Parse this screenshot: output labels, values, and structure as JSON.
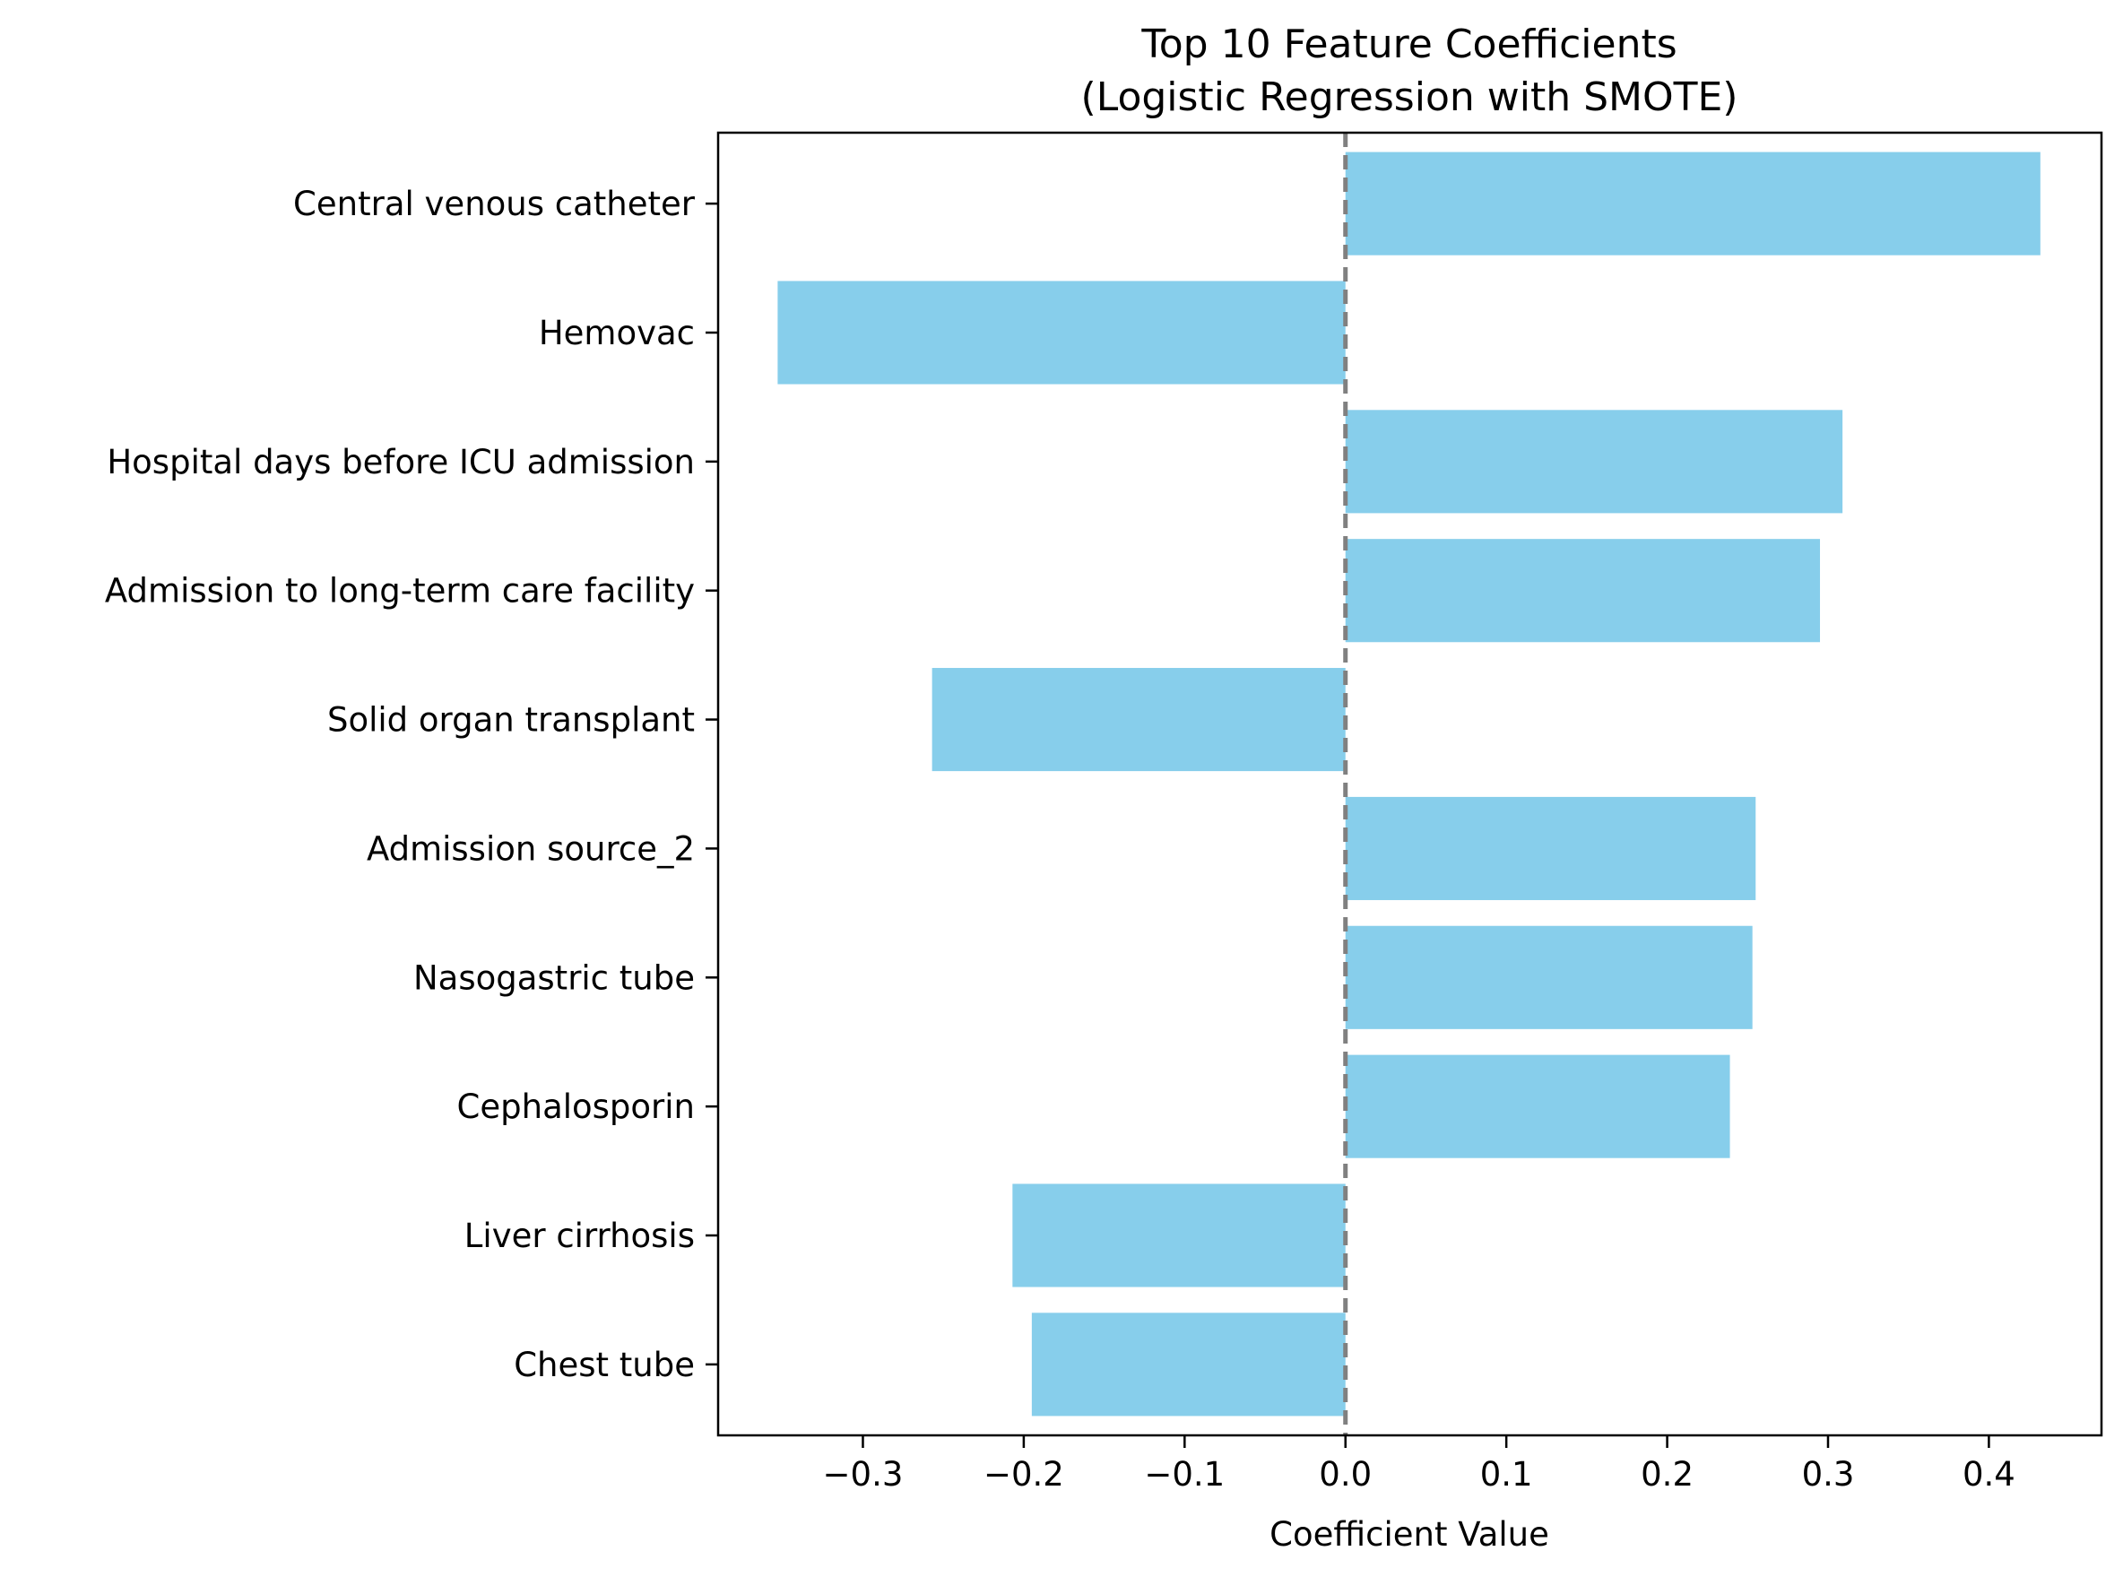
{
  "chart_data": {
    "type": "bar",
    "orientation": "horizontal",
    "title": "Top 10 Feature Coefficients",
    "subtitle": "(Logistic Regression with SMOTE)",
    "xlabel": "Coefficient Value",
    "ylabel": "",
    "xlim": [
      -0.39,
      0.47
    ],
    "xticks": [
      -0.3,
      -0.2,
      -0.1,
      0.0,
      0.1,
      0.2,
      0.3,
      0.4
    ],
    "xtick_labels": [
      "−0.3",
      "−0.2",
      "−0.1",
      "0.0",
      "0.1",
      "0.2",
      "0.3",
      "0.4"
    ],
    "categories": [
      "Central venous catheter",
      "Hemovac",
      "Hospital days before ICU admission",
      "Admission to long-term care facility",
      "Solid organ transplant",
      "Admission source_2",
      "Nasogastric tube",
      "Cephalosporin",
      "Liver cirrhosis",
      "Chest tube"
    ],
    "values": [
      0.432,
      -0.353,
      0.309,
      0.295,
      -0.257,
      0.255,
      0.253,
      0.239,
      -0.207,
      -0.195
    ],
    "bar_color": "#87CEEB",
    "reference_line": {
      "x": 0,
      "style": "dashed",
      "color": "#808080"
    },
    "grid": false,
    "legend": "none"
  }
}
